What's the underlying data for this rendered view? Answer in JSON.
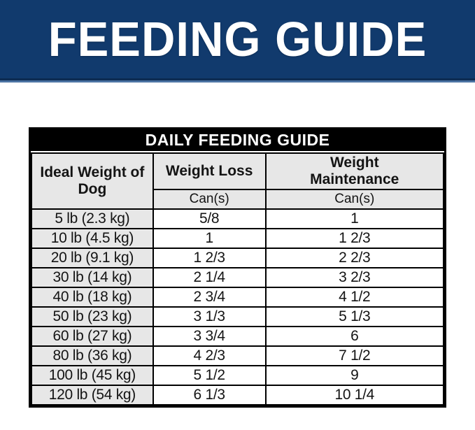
{
  "banner": {
    "title": "FEEDING GUIDE",
    "bg_color": "#113a6d",
    "edge_dark_color": "#0c2b52",
    "edge_light_color": "#4c74a3",
    "text_color": "#ffffff"
  },
  "table": {
    "title": "DAILY FEEDING GUIDE",
    "title_bg_color": "#000000",
    "header_bg_color": "#e7e7e7",
    "row_label_bg_color": "#e7e7e7",
    "border_color": "#000000",
    "columns": [
      {
        "label": "Ideal Weight of Dog",
        "unit": ""
      },
      {
        "label": "Weight Loss",
        "unit": "Can(s)"
      },
      {
        "label": "Weight Maintenance",
        "unit": "Can(s)"
      }
    ],
    "rows": [
      {
        "weight": "5 lb (2.3 kg)",
        "weight_loss": "5/8",
        "weight_maintenance": "1"
      },
      {
        "weight": "10 lb (4.5 kg)",
        "weight_loss": "1",
        "weight_maintenance": "1 2/3"
      },
      {
        "weight": "20 lb (9.1 kg)",
        "weight_loss": "1 2/3",
        "weight_maintenance": "2 2/3"
      },
      {
        "weight": "30 lb (14 kg)",
        "weight_loss": "2 1/4",
        "weight_maintenance": "3 2/3"
      },
      {
        "weight": "40 lb (18 kg)",
        "weight_loss": "2 3/4",
        "weight_maintenance": "4 1/2"
      },
      {
        "weight": "50 lb (23 kg)",
        "weight_loss": "3 1/3",
        "weight_maintenance": "5 1/3"
      },
      {
        "weight": "60 lb (27 kg)",
        "weight_loss": "3 3/4",
        "weight_maintenance": "6"
      },
      {
        "weight": "80 lb (36 kg)",
        "weight_loss": "4 2/3",
        "weight_maintenance": "7 1/2"
      },
      {
        "weight": "100 lb (45 kg)",
        "weight_loss": "5 1/2",
        "weight_maintenance": "9"
      },
      {
        "weight": "120 lb (54 kg)",
        "weight_loss": "6 1/3",
        "weight_maintenance": "10 1/4"
      }
    ]
  }
}
